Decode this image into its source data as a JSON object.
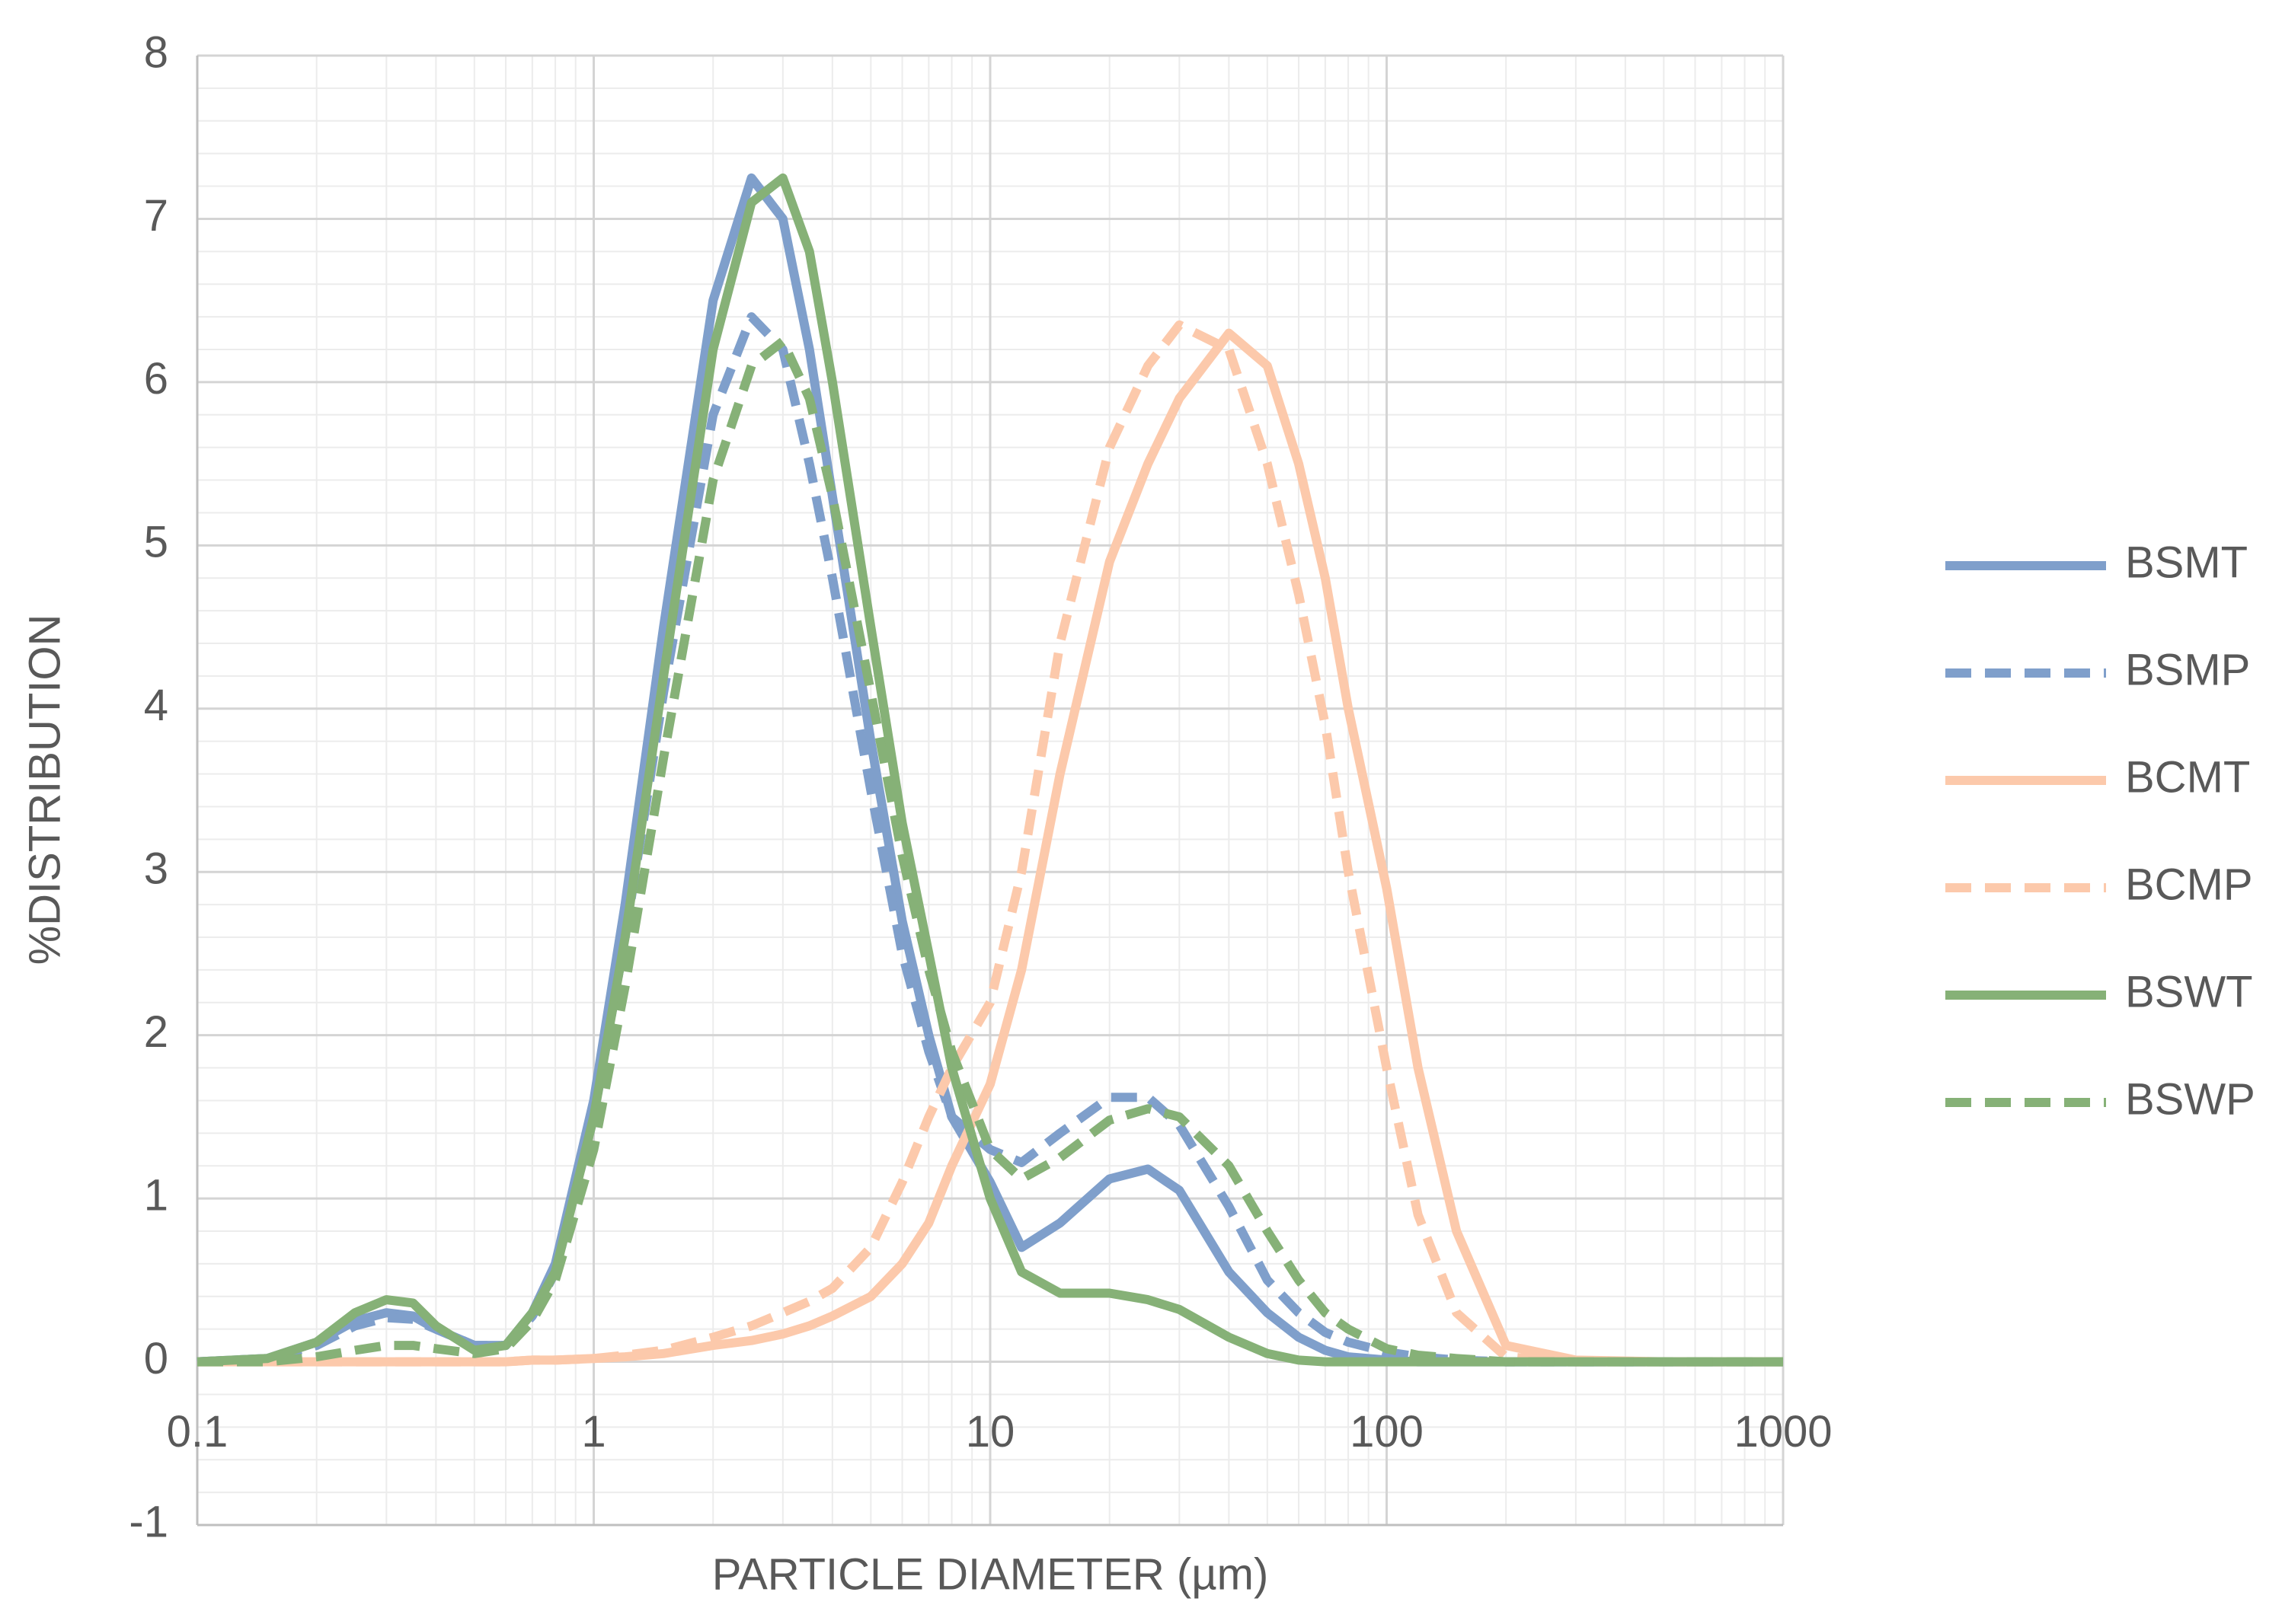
{
  "chart_data": {
    "type": "line",
    "x_label": "PARTICLE DIAMETER (µm)",
    "y_label": "%DISTRIBUTION",
    "x_scale": "log",
    "grid": true,
    "minor_grid": true,
    "legend": "right",
    "xlim": [
      0.1,
      1000
    ],
    "xticks": [
      0.1,
      1,
      10,
      100,
      1000
    ],
    "ylim": [
      -1,
      8
    ],
    "yticks": [
      -1,
      0,
      1,
      2,
      3,
      4,
      5,
      6,
      7,
      8
    ],
    "x": [
      0.1,
      0.15,
      0.2,
      0.25,
      0.3,
      0.35,
      0.4,
      0.5,
      0.6,
      0.7,
      0.8,
      1,
      1.2,
      1.5,
      2,
      2.5,
      3,
      3.5,
      4,
      5,
      6,
      7,
      8,
      10,
      12,
      15,
      20,
      25,
      30,
      40,
      50,
      60,
      70,
      80,
      100,
      120,
      150,
      200,
      300,
      500,
      1000
    ],
    "series": [
      {
        "name": "BSMT",
        "color": "#7f9fcb",
        "dash": "solid",
        "values": [
          0,
          0.02,
          0.12,
          0.25,
          0.3,
          0.28,
          0.2,
          0.1,
          0.1,
          0.3,
          0.6,
          1.6,
          2.8,
          4.5,
          6.5,
          7.25,
          7.0,
          6.2,
          5.3,
          3.8,
          2.7,
          2.0,
          1.5,
          1.1,
          0.7,
          0.85,
          1.12,
          1.18,
          1.05,
          0.55,
          0.3,
          0.15,
          0.07,
          0.03,
          0.01,
          0,
          0,
          0,
          0,
          0,
          0
        ]
      },
      {
        "name": "BSMP",
        "color": "#7f9fcb",
        "dash": "dashed",
        "values": [
          0,
          0.02,
          0.1,
          0.22,
          0.27,
          0.26,
          0.2,
          0.1,
          0.1,
          0.28,
          0.55,
          1.5,
          2.6,
          4.1,
          5.8,
          6.4,
          6.2,
          5.5,
          4.8,
          3.5,
          2.5,
          1.9,
          1.5,
          1.3,
          1.22,
          1.4,
          1.62,
          1.62,
          1.45,
          0.95,
          0.5,
          0.3,
          0.18,
          0.12,
          0.06,
          0.03,
          0.01,
          0,
          0,
          0,
          0
        ]
      },
      {
        "name": "BCMT",
        "color": "#fcc9ab",
        "dash": "solid",
        "values": [
          0,
          0,
          0,
          0,
          0,
          0,
          0,
          0,
          0,
          0.01,
          0.01,
          0.02,
          0.03,
          0.05,
          0.1,
          0.13,
          0.17,
          0.22,
          0.28,
          0.4,
          0.6,
          0.85,
          1.2,
          1.7,
          2.4,
          3.6,
          4.9,
          5.5,
          5.9,
          6.3,
          6.1,
          5.5,
          4.8,
          4.0,
          2.9,
          1.8,
          0.8,
          0.1,
          0.01,
          0,
          0
        ]
      },
      {
        "name": "BCMP",
        "color": "#fcc9ab",
        "dash": "dashed",
        "values": [
          0,
          0,
          0,
          0,
          0,
          0,
          0,
          0,
          0,
          0.01,
          0.01,
          0.02,
          0.04,
          0.07,
          0.15,
          0.22,
          0.3,
          0.37,
          0.45,
          0.7,
          1.1,
          1.5,
          1.8,
          2.2,
          3.0,
          4.4,
          5.6,
          6.1,
          6.35,
          6.2,
          5.5,
          4.7,
          3.9,
          3.0,
          1.8,
          0.9,
          0.3,
          0.03,
          0,
          0,
          0
        ]
      },
      {
        "name": "BSWT",
        "color": "#86b177",
        "dash": "solid",
        "values": [
          0,
          0.02,
          0.12,
          0.3,
          0.38,
          0.36,
          0.22,
          0.07,
          0.1,
          0.3,
          0.55,
          1.5,
          2.6,
          4.2,
          6.2,
          7.1,
          7.25,
          6.8,
          6.0,
          4.5,
          3.3,
          2.5,
          1.8,
          1.0,
          0.55,
          0.42,
          0.42,
          0.38,
          0.32,
          0.15,
          0.05,
          0.01,
          0,
          0,
          0,
          0,
          0,
          0,
          0,
          0,
          0
        ]
      },
      {
        "name": "BSWP",
        "color": "#86b177",
        "dash": "dashed",
        "values": [
          0,
          0,
          0.03,
          0.07,
          0.1,
          0.1,
          0.08,
          0.05,
          0.08,
          0.25,
          0.5,
          1.3,
          2.3,
          3.7,
          5.4,
          6.1,
          6.25,
          5.9,
          5.3,
          4.1,
          3.1,
          2.4,
          1.9,
          1.3,
          1.12,
          1.25,
          1.48,
          1.55,
          1.5,
          1.2,
          0.8,
          0.5,
          0.3,
          0.2,
          0.08,
          0.04,
          0.02,
          0,
          0,
          0,
          0
        ]
      }
    ]
  }
}
